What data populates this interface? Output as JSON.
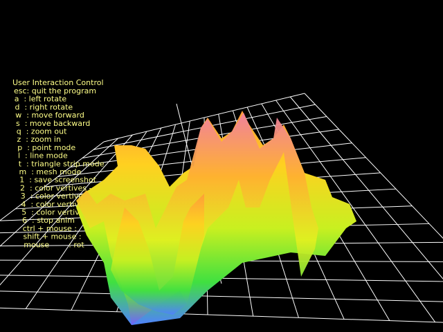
{
  "help": {
    "title": "User Interaction Control",
    "lines": [
      "esc: quit the program",
      "a  : left rotate",
      "d  : right rotate",
      "w  : move forward",
      "s  : move backward",
      "q  : zoom out",
      "z  : zoom in",
      "p  : point mode",
      "l  : line mode",
      "t  : triangle strip mode",
      "m  : mesh mode",
      "1  : save screenshot",
      "2  : color vertives -- sing",
      "3  : color vertives -- mult",
      "4  : color vertives -- from",
      "5  : color vertives -- text",
      "6  : stop anim",
      "ctrl + mouse :",
      "shift + mouse :",
      "mouse        : rot"
    ]
  }
}
